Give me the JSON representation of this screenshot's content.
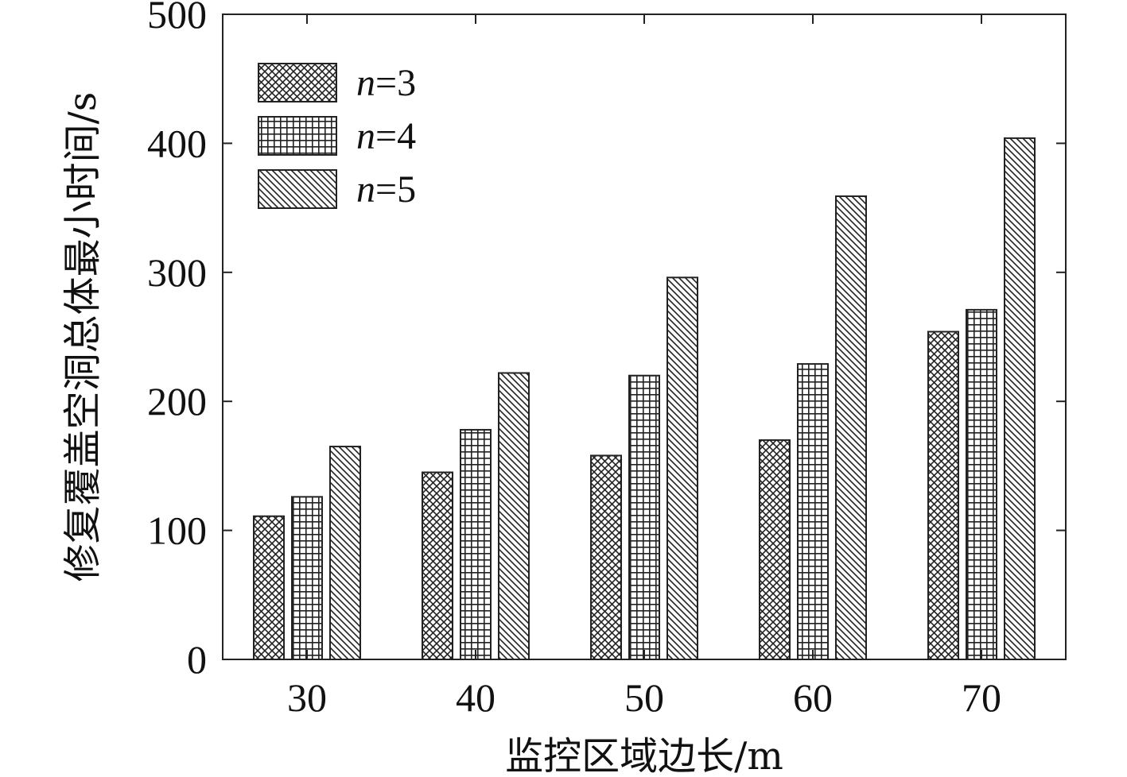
{
  "chart_data": {
    "type": "bar",
    "title": "",
    "xlabel": "监控区域边长/m",
    "ylabel": "修复覆盖空洞总体最小时间/s",
    "categories": [
      "30",
      "40",
      "50",
      "60",
      "70"
    ],
    "ylim": [
      0,
      500
    ],
    "yticks": [
      "0",
      "100",
      "200",
      "300",
      "400",
      "500"
    ],
    "grid": false,
    "legend_position": "top-left",
    "series": [
      {
        "name_var": "n",
        "name_value": "=3",
        "pattern": "crosshatch",
        "values": [
          111,
          145,
          158,
          170,
          254
        ]
      },
      {
        "name_var": "n",
        "name_value": "=4",
        "pattern": "grid",
        "values": [
          126,
          178,
          220,
          229,
          271
        ]
      },
      {
        "name_var": "n",
        "name_value": "=5",
        "pattern": "diagonal",
        "values": [
          165,
          222,
          296,
          359,
          404
        ]
      }
    ]
  }
}
